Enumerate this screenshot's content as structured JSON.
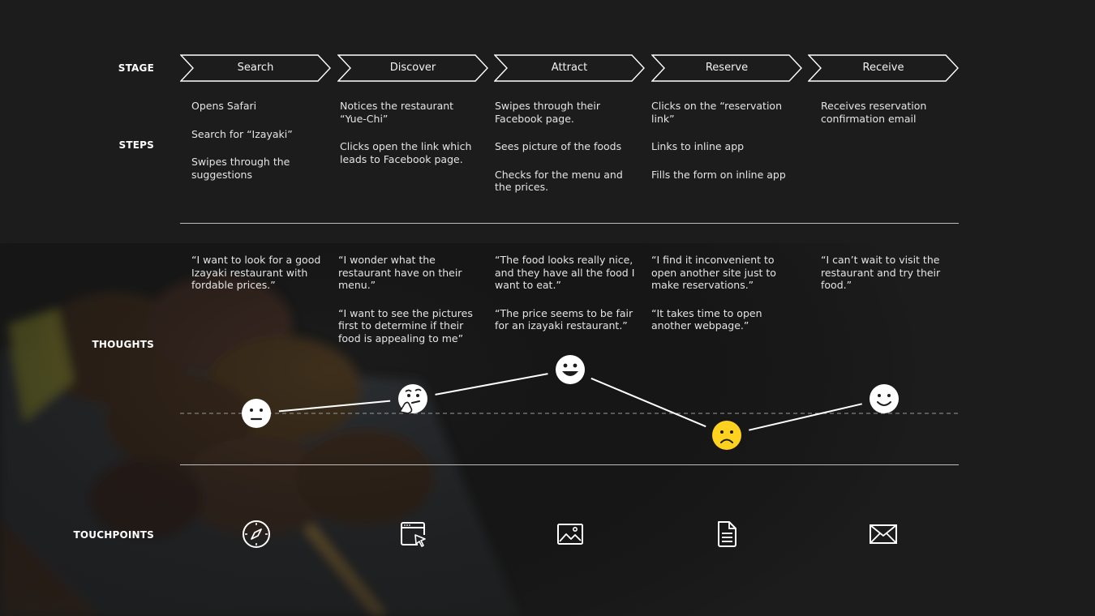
{
  "row_labels": {
    "stage": "STAGE",
    "steps": "STEPS",
    "thoughts": "THOUGHTS",
    "touchpoints": "TOUCHPOINTS"
  },
  "stages": [
    {
      "label": "Search"
    },
    {
      "label": "Discover"
    },
    {
      "label": "Attract"
    },
    {
      "label": "Reserve"
    },
    {
      "label": "Receive"
    }
  ],
  "steps": [
    [
      "Opens Safari",
      "Search for “Izayaki”",
      "Swipes through the suggestions"
    ],
    [
      "Notices the restaurant “Yue-Chi”",
      "Clicks open the link which leads to Facebook page."
    ],
    [
      "Swipes through their Facebook page.",
      "Sees picture of the foods",
      "Checks for the menu and the prices."
    ],
    [
      "Clicks on the “reservation link”",
      "Links to inline app",
      "Fills the form on inline app"
    ],
    [
      "Receives reservation confirmation email"
    ]
  ],
  "thoughts": [
    [
      "“I want to look for a good Izayaki restaurant with fordable prices.”"
    ],
    [
      "“I wonder what  the restaurant have on their menu.”",
      "“I want to see the pictures first to determine if their food is appealing to me”"
    ],
    [
      "“The food looks really nice, and they have all the food I want to eat.”",
      "“The price seems to be fair for an izayaki restaurant.”"
    ],
    [
      "“I find it inconvenient to open another site just to make reservations.”",
      "“It takes time to open another webpage.”"
    ],
    [
      "“I can’t wait to visit the restaurant and try their food.”"
    ]
  ],
  "emotions": [
    {
      "stage": "Search",
      "icon": "neutral-face-icon",
      "level": 0
    },
    {
      "stage": "Discover",
      "icon": "thinking-face-icon",
      "level": 0.5
    },
    {
      "stage": "Attract",
      "icon": "grinning-face-icon",
      "level": 1.5
    },
    {
      "stage": "Reserve",
      "icon": "sad-face-icon",
      "level": -0.75
    },
    {
      "stage": "Receive",
      "icon": "smiling-face-icon",
      "level": 0.5
    }
  ],
  "touchpoints": [
    {
      "stage": "Search",
      "icon": "compass-icon"
    },
    {
      "stage": "Discover",
      "icon": "browser-cursor-icon"
    },
    {
      "stage": "Attract",
      "icon": "image-icon"
    },
    {
      "stage": "Reserve",
      "icon": "document-icon"
    },
    {
      "stage": "Receive",
      "icon": "mail-icon"
    }
  ],
  "colors": {
    "background": "#1c1c1c",
    "text": "#e4e4e4",
    "line": "#ffffff",
    "emoji_neutral": "#ffffff",
    "emoji_negative": "#ffd21f"
  }
}
